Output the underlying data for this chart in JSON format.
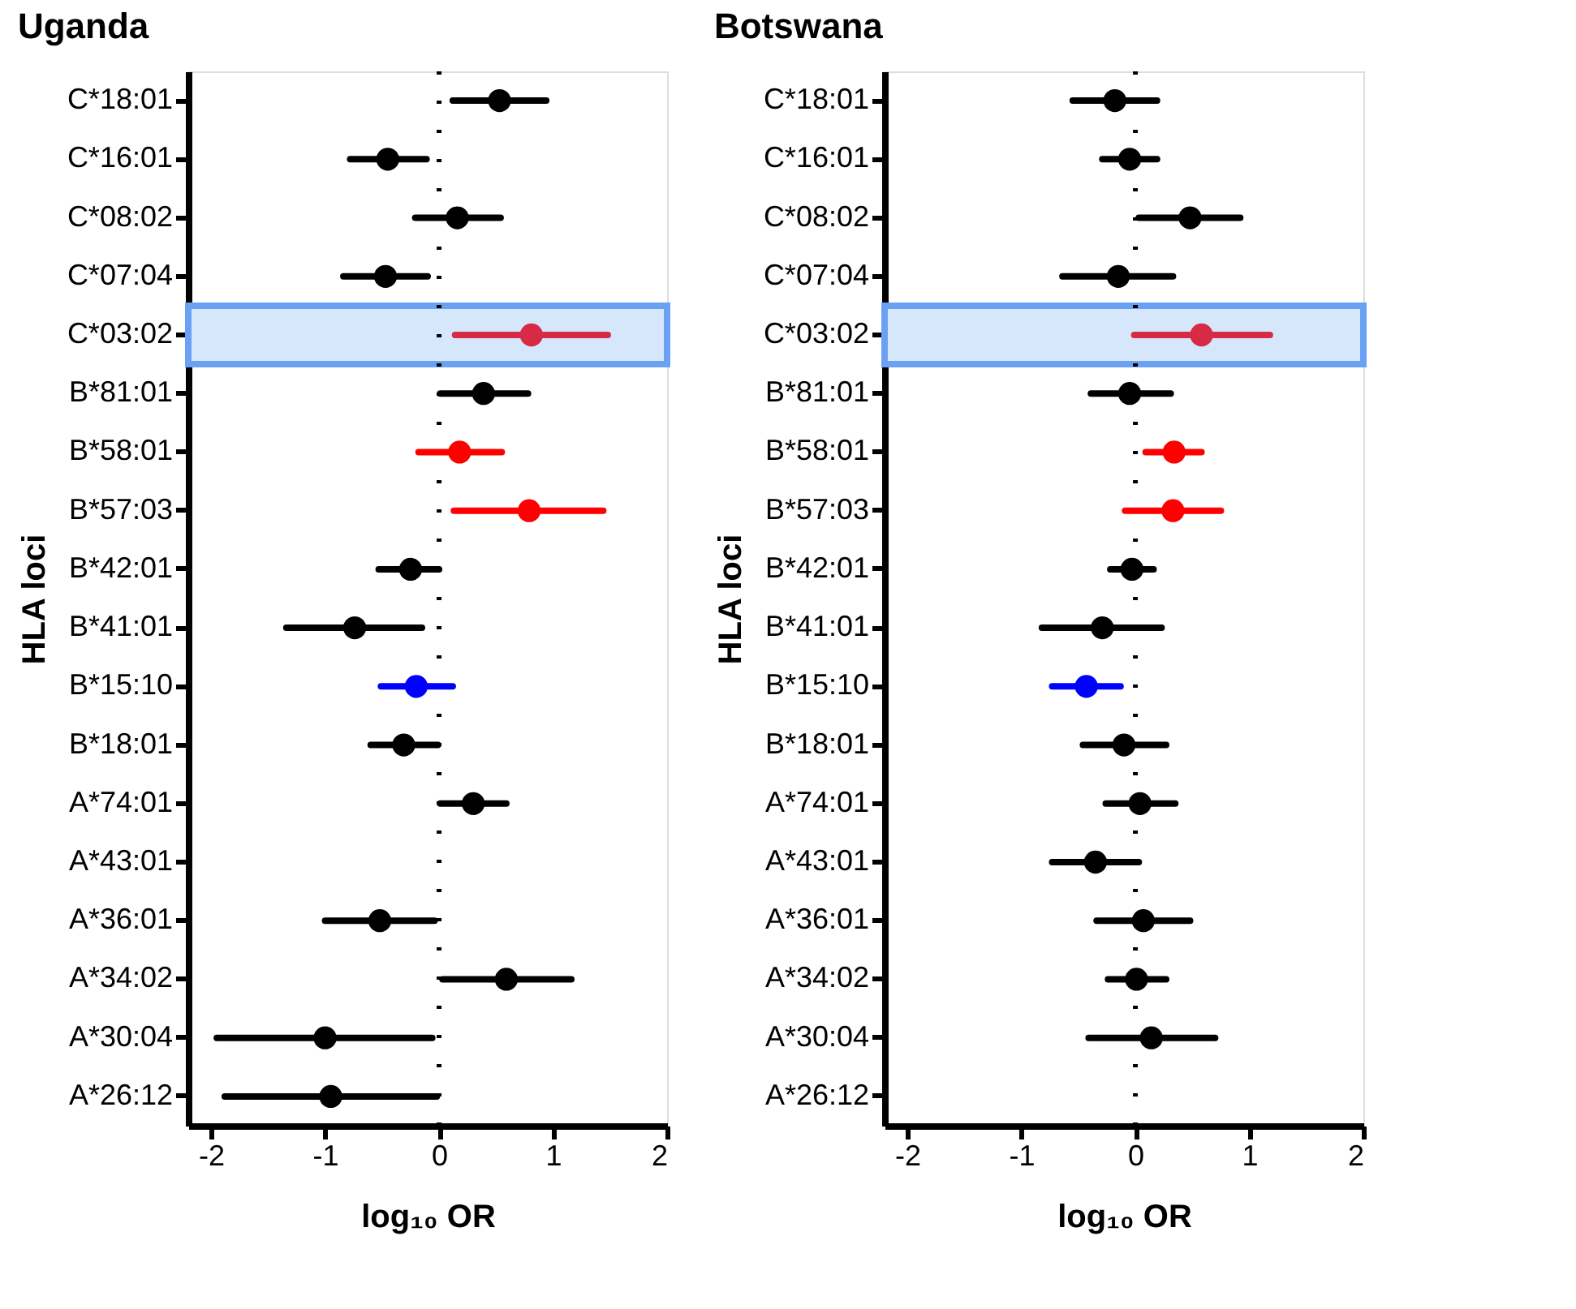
{
  "chart_data": [
    {
      "type": "scatter",
      "orientation": "horizontal",
      "title": "Uganda",
      "xlabel": "log₁₀ OR",
      "ylabel": "HLA loci",
      "categories": [
        "C*18:01",
        "C*16:01",
        "C*08:02",
        "C*07:04",
        "C*03:02",
        "B*81:01",
        "B*58:01",
        "B*57:03",
        "B*42:01",
        "B*41:01",
        "B*15:10",
        "B*18:01",
        "A*74:01",
        "A*43:01",
        "A*36:01",
        "A*34:02",
        "A*30:04",
        "A*26:12"
      ],
      "values": [
        0.53,
        -0.45,
        0.16,
        -0.47,
        0.81,
        0.39,
        0.18,
        0.79,
        -0.25,
        -0.74,
        -0.2,
        -0.31,
        0.3,
        null,
        -0.52,
        0.59,
        -1.0,
        -0.95
      ],
      "errors": [
        [
          0.12,
          0.94
        ],
        [
          -0.78,
          -0.11
        ],
        [
          -0.21,
          0.54
        ],
        [
          -0.84,
          -0.1
        ],
        [
          0.14,
          1.48
        ],
        [
          0.01,
          0.78
        ],
        [
          -0.18,
          0.55
        ],
        [
          0.13,
          1.44
        ],
        [
          -0.53,
          0.0
        ],
        [
          -1.34,
          -0.15
        ],
        [
          -0.51,
          0.12
        ],
        [
          -0.6,
          -0.01
        ],
        [
          0.01,
          0.59
        ],
        null,
        [
          -1.0,
          -0.04
        ],
        [
          0.03,
          1.16
        ],
        [
          -1.95,
          -0.06
        ],
        [
          -1.88,
          -0.02
        ]
      ],
      "colors": [
        "#000000",
        "#000000",
        "#000000",
        "#000000",
        "#d62a45",
        "#000000",
        "#ff0000",
        "#ff0000",
        "#000000",
        "#000000",
        "#0000ff",
        "#000000",
        "#000000",
        "#000000",
        "#000000",
        "#000000",
        "#000000",
        "#000000"
      ],
      "xlim": [
        -2.2,
        2
      ],
      "xticks": [
        -2,
        -1,
        0,
        1,
        2
      ],
      "grid": false,
      "marker": "circle",
      "ref_lines": [
        {
          "axis": "x",
          "value": 0,
          "line_style": "dotted",
          "color": "#000000"
        }
      ],
      "bands": [
        {
          "axis": "y",
          "from": "C*03:02",
          "to": "C*03:02",
          "color": "#d6e6fb"
        }
      ]
    },
    {
      "type": "scatter",
      "orientation": "horizontal",
      "title": "Botswana",
      "xlabel": "log₁₀ OR",
      "ylabel": "HLA loci",
      "categories": [
        "C*18:01",
        "C*16:01",
        "C*08:02",
        "C*07:04",
        "C*03:02",
        "B*81:01",
        "B*58:01",
        "B*57:03",
        "B*42:01",
        "B*41:01",
        "B*15:10",
        "B*18:01",
        "A*74:01",
        "A*43:01",
        "A*36:01",
        "A*34:02",
        "A*30:04",
        "A*26:12"
      ],
      "values": [
        -0.18,
        -0.05,
        0.48,
        -0.15,
        0.58,
        -0.05,
        0.34,
        0.33,
        -0.03,
        -0.29,
        -0.43,
        -0.1,
        0.04,
        -0.35,
        0.07,
        0.01,
        0.14,
        null
      ],
      "errors": [
        [
          -0.55,
          0.19
        ],
        [
          -0.29,
          0.19
        ],
        [
          0.03,
          0.92
        ],
        [
          -0.64,
          0.33
        ],
        [
          -0.01,
          1.18
        ],
        [
          -0.39,
          0.31
        ],
        [
          0.09,
          0.58
        ],
        [
          -0.09,
          0.75
        ],
        [
          -0.22,
          0.16
        ],
        [
          -0.82,
          0.23
        ],
        [
          -0.73,
          -0.13
        ],
        [
          -0.46,
          0.27
        ],
        [
          -0.26,
          0.35
        ],
        [
          -0.73,
          0.03
        ],
        [
          -0.34,
          0.48
        ],
        [
          -0.24,
          0.27
        ],
        [
          -0.41,
          0.7
        ],
        null
      ],
      "colors": [
        "#000000",
        "#000000",
        "#000000",
        "#000000",
        "#d62a45",
        "#000000",
        "#ff0000",
        "#ff0000",
        "#000000",
        "#000000",
        "#0000ff",
        "#000000",
        "#000000",
        "#000000",
        "#000000",
        "#000000",
        "#000000",
        "#000000"
      ],
      "xlim": [
        -2.2,
        2
      ],
      "xticks": [
        -2,
        -1,
        0,
        1,
        2
      ],
      "grid": false,
      "marker": "circle",
      "ref_lines": [
        {
          "axis": "x",
          "value": 0,
          "line_style": "dotted",
          "color": "#000000"
        }
      ],
      "bands": [
        {
          "axis": "y",
          "from": "C*03:02",
          "to": "C*03:02",
          "color": "#d6e6fb"
        }
      ]
    }
  ]
}
